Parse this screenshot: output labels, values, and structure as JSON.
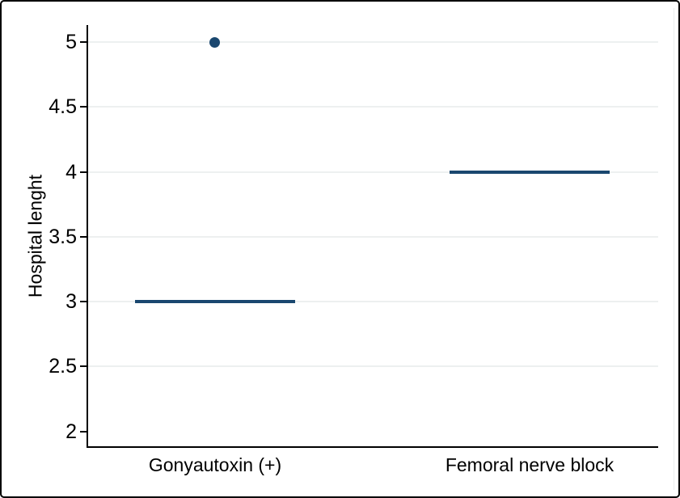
{
  "chart_data": {
    "type": "box",
    "title": "",
    "xlabel": "",
    "ylabel": "Hospital lenght",
    "categories": [
      "Gonyautoxin (+)",
      "Femoral nerve block"
    ],
    "yticks": [
      {
        "label": "2",
        "value": 2,
        "grid": false
      },
      {
        "label": "2.5",
        "value": 2.5,
        "grid": true
      },
      {
        "label": "3",
        "value": 3,
        "grid": true
      },
      {
        "label": "3.5",
        "value": 3.5,
        "grid": true
      },
      {
        "label": "4",
        "value": 4,
        "grid": true
      },
      {
        "label": "4.5",
        "value": 4.5,
        "grid": true
      },
      {
        "label": "5",
        "value": 5,
        "grid": true
      }
    ],
    "ylim": [
      1.879,
      5.131
    ],
    "grid": true,
    "legend": "none",
    "boxes": [
      {
        "category": "Gonyautoxin (+)",
        "median": 3,
        "outliers": [
          5
        ]
      },
      {
        "category": "Femoral nerve block",
        "median": 4,
        "outliers": []
      }
    ],
    "colors": {
      "series": "#1a476f",
      "gridline": "#edf0f0",
      "axis": "#000000",
      "text": "#000000",
      "background": "#ffffff",
      "frame": "#000000",
      "inner_edge": "#e9eded"
    }
  }
}
